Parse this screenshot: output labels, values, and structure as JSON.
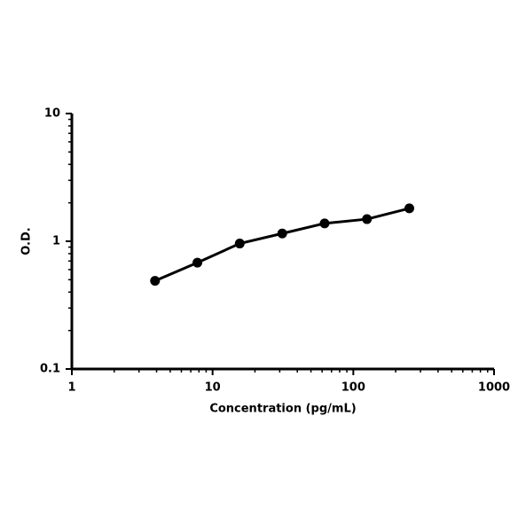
{
  "chart_data": {
    "type": "line",
    "x_label": "Concentration (pg/mL)",
    "y_label": "O.D.",
    "x_log": true,
    "y_log": true,
    "minor_ticks": true,
    "series": [
      {
        "color": "#000000",
        "x": [
          3.9,
          7.8,
          15.6,
          31.25,
          62.5,
          125,
          250
        ],
        "values": [
          0.49,
          0.68,
          0.96,
          1.15,
          1.38,
          1.49,
          1.81
        ]
      }
    ],
    "xlim": [
      1,
      1000
    ],
    "xticks": [
      1,
      10,
      100,
      1000
    ],
    "ylim": [
      0.1,
      10
    ],
    "yticks": [
      0.1,
      1,
      10
    ]
  }
}
